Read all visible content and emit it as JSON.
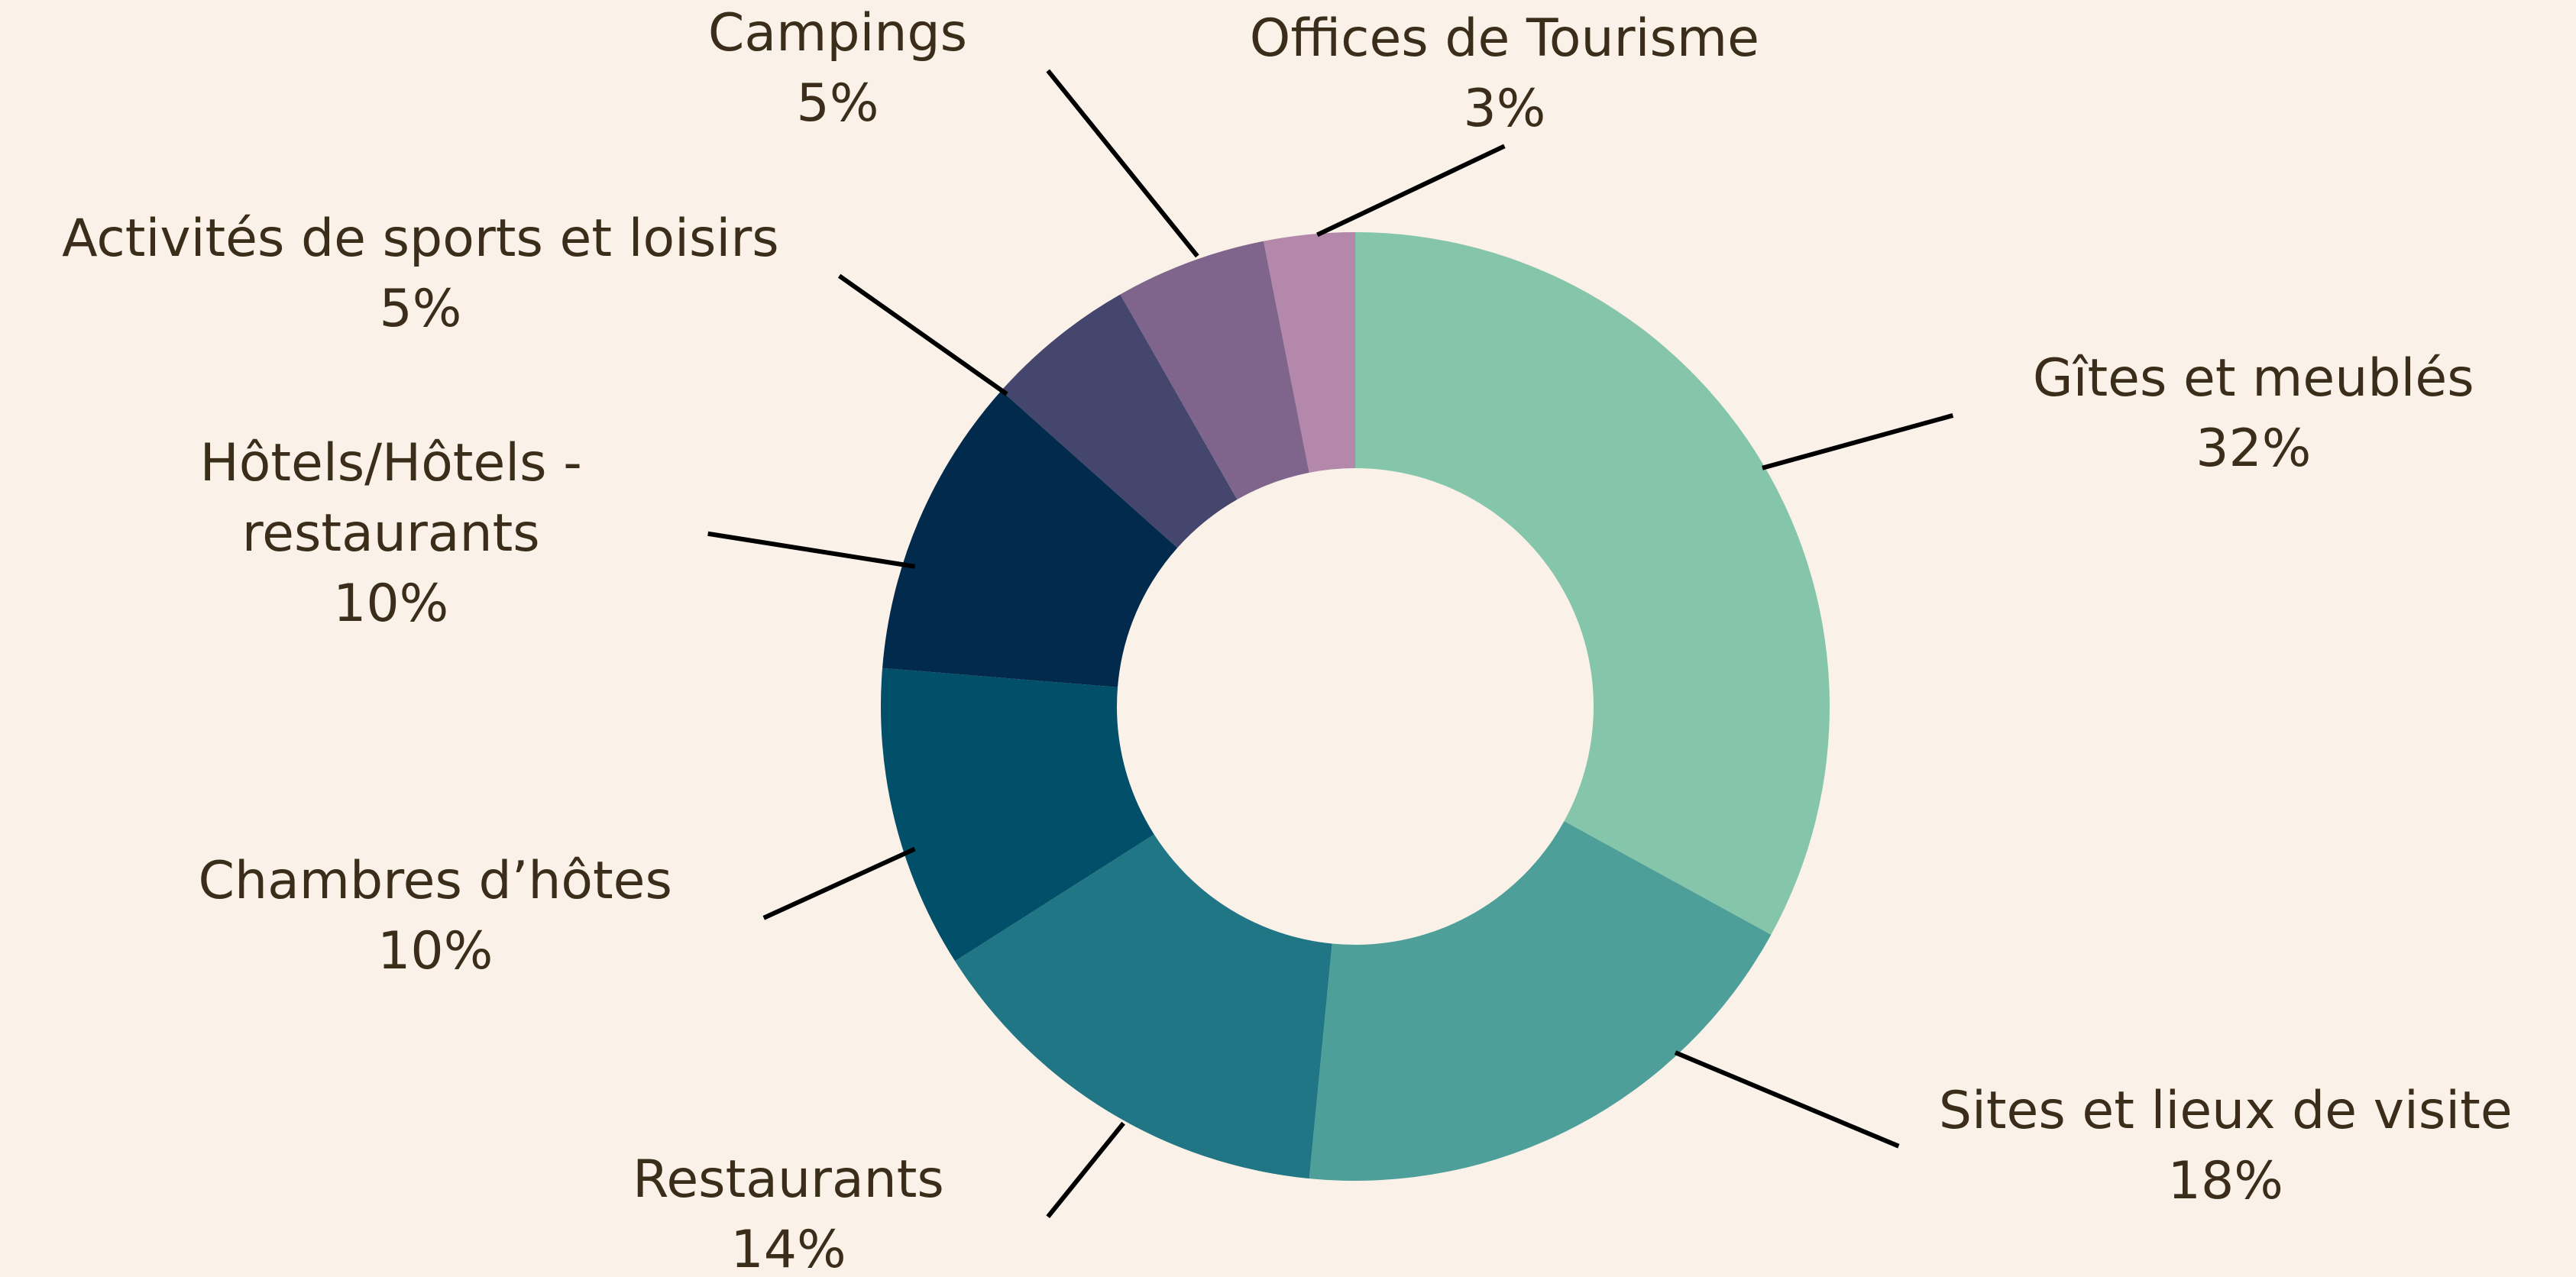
{
  "chart_data": {
    "type": "donut",
    "categories": [
      "Gîtes et meublés",
      "Sites et lieux de visite",
      "Restaurants",
      "Chambres d’hôtes",
      "Hôtels/Hôtels - restaurants",
      "Activités de sports et loisirs",
      "Campings",
      "Offices de Tourisme"
    ],
    "values": [
      32,
      18,
      14,
      10,
      10,
      5,
      5,
      3
    ],
    "value_labels": [
      "32%",
      "18%",
      "14%",
      "10%",
      "10%",
      "5%",
      "5%",
      "3%"
    ],
    "colors": [
      "#85c6aa",
      "#4e9f9a",
      "#217686",
      "#024f6a",
      "#012a4c",
      "#45466e",
      "#7f658c",
      "#b388ab"
    ]
  }
}
